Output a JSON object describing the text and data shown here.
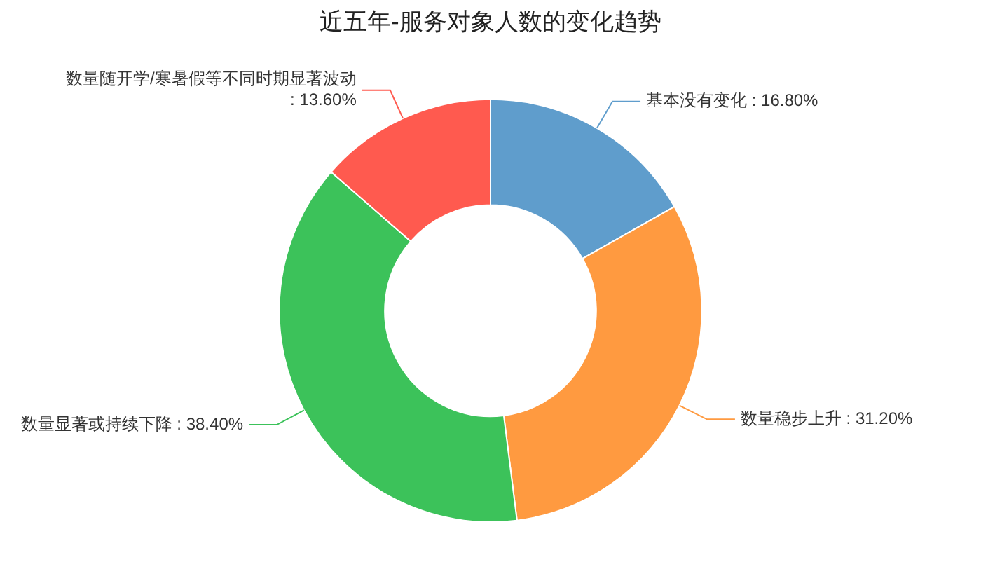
{
  "chart_data": {
    "type": "donut",
    "title": "近五年-服务对象人数的变化趋势",
    "categories": [
      "基本没有变化",
      "数量稳步上升",
      "数量显著或持续下降",
      "数量随开学/寒暑假等不同时期显著波动"
    ],
    "values": [
      16.8,
      31.2,
      38.4,
      13.6
    ],
    "colors": [
      "#5f9dcc",
      "#ff9a40",
      "#3cc25a",
      "#ff5a4f"
    ],
    "value_labels": [
      ": 16.80%",
      ": 31.20%",
      ": 38.40%",
      ": 13.60%"
    ],
    "legend": false
  }
}
